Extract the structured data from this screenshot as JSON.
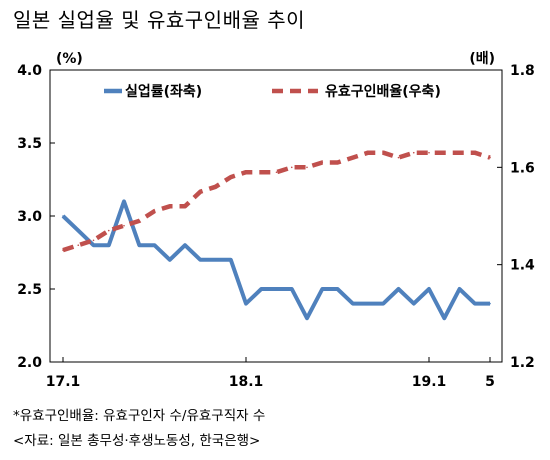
{
  "title": "일본 실업율 및 유효구인배율 추이",
  "chart_data": {
    "type": "line",
    "left_unit": "(%)",
    "right_unit": "(배)",
    "y_left": {
      "ticks": [
        "4.0",
        "3.5",
        "3.0",
        "2.5",
        "2.0"
      ],
      "min": 2.0,
      "max": 4.0
    },
    "y_right": {
      "ticks": [
        "1.8",
        "1.6",
        "1.4",
        "1.2"
      ],
      "min": 1.2,
      "max": 1.8
    },
    "x_tick_labels": [
      {
        "label": "17.1",
        "index": 0
      },
      {
        "label": "18.1",
        "index": 12
      },
      {
        "label": "19.1",
        "index": 24
      },
      {
        "label": "5",
        "index": 28
      }
    ],
    "x": [
      "2017-01",
      "2017-02",
      "2017-03",
      "2017-04",
      "2017-05",
      "2017-06",
      "2017-07",
      "2017-08",
      "2017-09",
      "2017-10",
      "2017-11",
      "2017-12",
      "2018-01",
      "2018-02",
      "2018-03",
      "2018-04",
      "2018-05",
      "2018-06",
      "2018-07",
      "2018-08",
      "2018-09",
      "2018-10",
      "2018-11",
      "2018-12",
      "2019-01",
      "2019-02",
      "2019-03",
      "2019-04",
      "2019-05"
    ],
    "series": [
      {
        "name": "실업률(좌축)",
        "axis": "left",
        "color": "#4F81BD",
        "style": "solid",
        "values": [
          3.0,
          2.9,
          2.8,
          2.8,
          3.1,
          2.8,
          2.8,
          2.7,
          2.8,
          2.7,
          2.7,
          2.7,
          2.4,
          2.5,
          2.5,
          2.5,
          2.3,
          2.5,
          2.5,
          2.4,
          2.4,
          2.4,
          2.5,
          2.4,
          2.5,
          2.3,
          2.5,
          2.4,
          2.4
        ]
      },
      {
        "name": "유효구인배율(우축)",
        "axis": "right",
        "color": "#C0504D",
        "style": "dashed",
        "values": [
          1.43,
          1.44,
          1.45,
          1.47,
          1.48,
          1.49,
          1.51,
          1.52,
          1.52,
          1.55,
          1.56,
          1.58,
          1.59,
          1.59,
          1.59,
          1.6,
          1.6,
          1.61,
          1.61,
          1.62,
          1.63,
          1.63,
          1.62,
          1.63,
          1.63,
          1.63,
          1.63,
          1.63,
          1.62
        ]
      }
    ],
    "legend_position": "top"
  },
  "footnotes": {
    "note": "*유효구인배율: 유효구인자 수/유효구직자 수",
    "source": "<자료: 일본 총무성·후생노동성, 한국은행>"
  }
}
